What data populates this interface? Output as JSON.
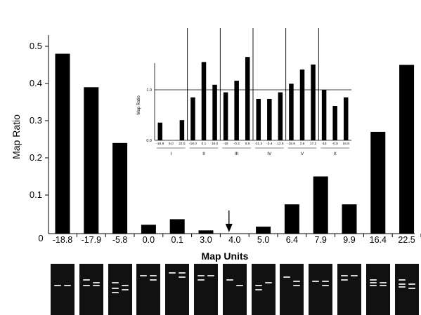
{
  "chart_data": [
    {
      "type": "bar",
      "title": "",
      "xlabel": "Map Units",
      "ylabel": "Map Ratio",
      "categories": [
        "-18.8",
        "-17.9",
        "-5.8",
        "0.0",
        "0.1",
        "3.0",
        "4.0",
        "5.0",
        "6.4",
        "7.9",
        "9.9",
        "16.4",
        "22.5"
      ],
      "values": [
        0.48,
        0.39,
        0.24,
        0.02,
        0.035,
        0.005,
        0.0,
        0.015,
        0.075,
        0.15,
        0.075,
        0.27,
        0.45
      ],
      "ylim": [
        0,
        0.52
      ],
      "y_ticks": [
        0.1,
        0.2,
        0.3,
        0.4,
        0.5
      ],
      "y_tick_labels": [
        "0.1",
        "0.2",
        "0.3",
        "0.4",
        "0.5"
      ],
      "zero_label": "0",
      "annotation": "arrow pointing to 4.0",
      "grid": false,
      "legend": "none"
    },
    {
      "type": "bar",
      "title": "",
      "ylabel": "Map Ratio",
      "y_ticks": [
        0.0,
        1.0
      ],
      "y_tick_labels": [
        "0.0",
        "1.0"
      ],
      "ylim": [
        0,
        1.75
      ],
      "reference_line": 1.0,
      "groups": [
        {
          "label": "I",
          "categories": [
            "-18.8",
            "5.0",
            "22.5"
          ],
          "values": [
            0.35,
            0.0,
            0.4
          ]
        },
        {
          "label": "II",
          "categories": [
            "-18.0",
            "0.1",
            "16.0"
          ],
          "values": [
            0.85,
            1.55,
            1.1
          ]
        },
        {
          "label": "III",
          "categories": [
            "-18",
            "-0.3",
            "8.5"
          ],
          "values": [
            0.95,
            1.18,
            1.65
          ]
        },
        {
          "label": "IV",
          "categories": [
            "-21.4",
            "-3.4",
            "12.5"
          ],
          "values": [
            0.82,
            0.82,
            0.95
          ]
        },
        {
          "label": "V",
          "categories": [
            "-18.9",
            "2.6",
            "17.2"
          ],
          "values": [
            1.12,
            1.4,
            1.5
          ]
        },
        {
          "label": "X",
          "categories": [
            "-18",
            "-0.8",
            "16.8"
          ],
          "values": [
            1.0,
            0.68,
            0.85
          ]
        }
      ],
      "grid": false,
      "legend": "none"
    }
  ]
}
